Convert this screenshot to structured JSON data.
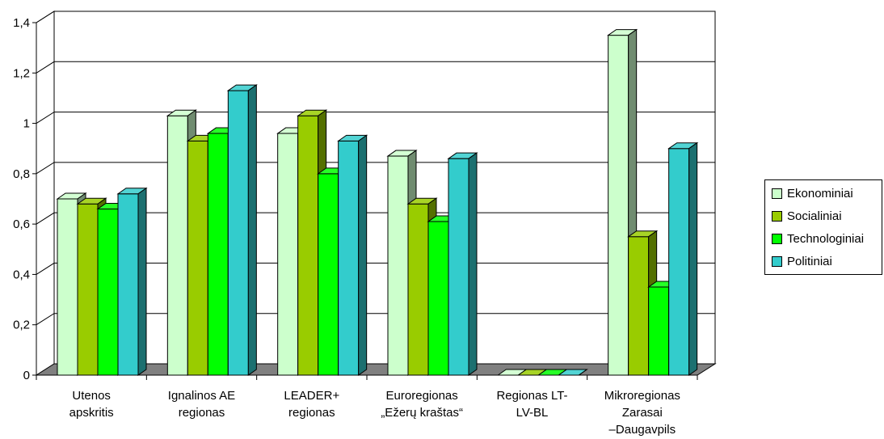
{
  "chart_data": {
    "type": "bar",
    "categories": [
      [
        "Utenos",
        "apskritis"
      ],
      [
        "Ignalinos AE",
        "regionas"
      ],
      [
        "LEADER+",
        "regionas"
      ],
      [
        "Euroregionas",
        "„Ežerų kraštas“"
      ],
      [
        "Regionas LT-",
        "LV-BL"
      ],
      [
        "Mikroregionas",
        "Zarasai",
        "–Daugavpils"
      ]
    ],
    "series": [
      {
        "name": "Ekonominiai",
        "color": "#ccffcc",
        "values": [
          0.7,
          1.03,
          0.96,
          0.87,
          0,
          1.35
        ]
      },
      {
        "name": "Socialiniai",
        "color": "#99cc00",
        "values": [
          0.68,
          0.93,
          1.03,
          0.68,
          0,
          0.55
        ]
      },
      {
        "name": "Technologiniai",
        "color": "#00ff00",
        "values": [
          0.66,
          0.96,
          0.8,
          0.61,
          0,
          0.35
        ]
      },
      {
        "name": "Politiniai",
        "color": "#33cccc",
        "values": [
          0.72,
          1.13,
          0.93,
          0.86,
          0,
          0.9
        ]
      }
    ],
    "yticks": [
      "0",
      "0,2",
      "0,4",
      "0,6",
      "0,8",
      "1",
      "1,2",
      "1,4"
    ],
    "ylim": [
      0,
      1.4
    ],
    "grid": true,
    "legend": "right",
    "floor_color": "#808080"
  }
}
